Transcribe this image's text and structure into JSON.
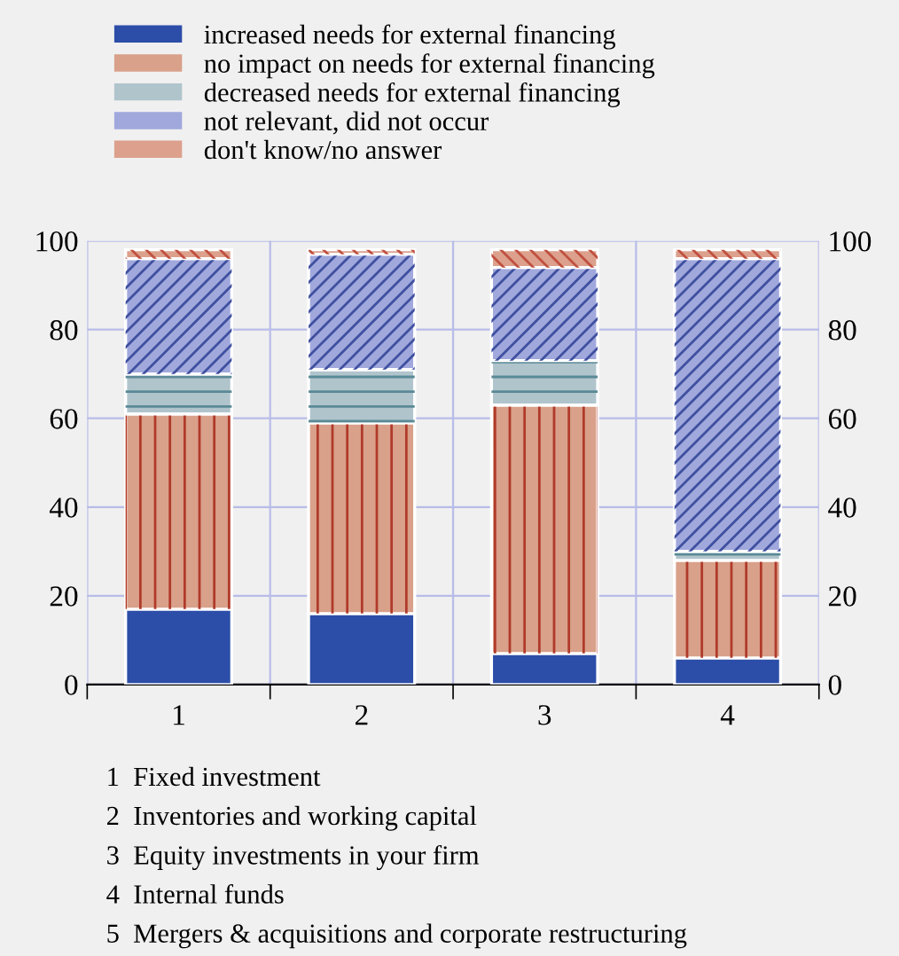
{
  "chart_data": {
    "type": "bar",
    "stacked": true,
    "categories": [
      "1",
      "2",
      "3",
      "4"
    ],
    "series": [
      {
        "name": "increased needs for external financing",
        "color": "#2c4ea8",
        "values": [
          17,
          16,
          7,
          6
        ]
      },
      {
        "name": "no impact on needs for external financing",
        "color": "#d9a08a",
        "values": [
          44,
          43,
          56,
          22
        ]
      },
      {
        "name": "decreased needs for external financing",
        "color": "#b0c4cc",
        "values": [
          9,
          12,
          10,
          2
        ]
      },
      {
        "name": "not relevant, did not occur",
        "color": "#a0a8dc",
        "values": [
          26,
          26,
          21,
          66
        ]
      },
      {
        "name": "don't know/no answer",
        "color": "#dca08c",
        "values": [
          2,
          1,
          4,
          2
        ]
      }
    ],
    "ylim": [
      0,
      100
    ],
    "yticks": [
      0,
      20,
      40,
      60,
      80,
      100
    ],
    "y2lim": [
      0,
      100
    ],
    "y2ticks": [
      0,
      20,
      40,
      60,
      80,
      100
    ],
    "grid": true,
    "legend": "top",
    "annotations": [
      "1  Fixed investment",
      "2  Inventories and working capital",
      "3  Equity investments in your firm",
      "4  Internal funds",
      "5  Mergers & acquisitions and corporate restructuring"
    ]
  }
}
